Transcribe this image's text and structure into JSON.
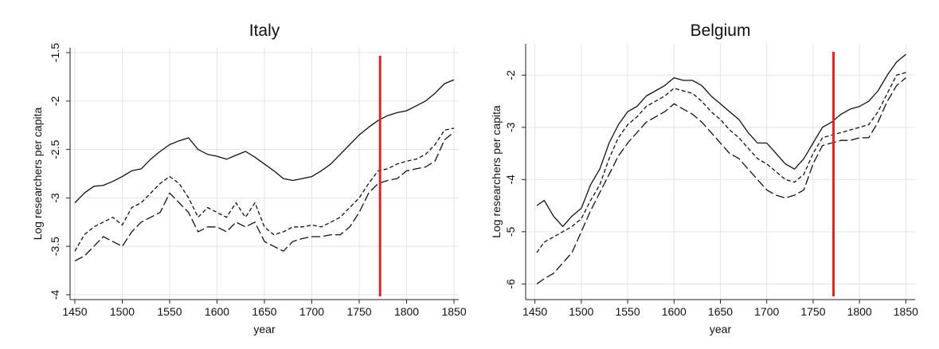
{
  "chart_data": [
    {
      "type": "line",
      "title": "Italy",
      "xlabel": "year",
      "ylabel": "Log researchers per capita",
      "xlim": [
        1445,
        1855
      ],
      "ylim": [
        -4.05,
        -1.45
      ],
      "xticks": [
        1450,
        1500,
        1550,
        1600,
        1650,
        1700,
        1750,
        1800,
        1850
      ],
      "yticks": [
        -4,
        -3.5,
        -3,
        -2.5,
        -2,
        -1.5
      ],
      "ytick_labels": [
        "-4",
        "-3.5",
        "-3",
        "-2.5",
        "-2",
        "-1.5"
      ],
      "grid": true,
      "vertical_line": {
        "x": 1772,
        "color": "#d62728"
      },
      "series": [
        {
          "style": "solid",
          "x": [
            1450,
            1460,
            1470,
            1480,
            1490,
            1500,
            1510,
            1520,
            1530,
            1540,
            1550,
            1560,
            1570,
            1580,
            1590,
            1600,
            1610,
            1620,
            1630,
            1640,
            1650,
            1660,
            1670,
            1680,
            1690,
            1700,
            1710,
            1720,
            1730,
            1740,
            1750,
            1760,
            1770,
            1780,
            1790,
            1800,
            1810,
            1820,
            1830,
            1840,
            1850
          ],
          "values": [
            -3.05,
            -2.95,
            -2.88,
            -2.87,
            -2.83,
            -2.78,
            -2.72,
            -2.7,
            -2.6,
            -2.52,
            -2.45,
            -2.41,
            -2.38,
            -2.5,
            -2.55,
            -2.57,
            -2.6,
            -2.56,
            -2.52,
            -2.58,
            -2.65,
            -2.72,
            -2.8,
            -2.82,
            -2.8,
            -2.78,
            -2.72,
            -2.65,
            -2.55,
            -2.45,
            -2.35,
            -2.27,
            -2.2,
            -2.15,
            -2.12,
            -2.1,
            -2.05,
            -2.0,
            -1.92,
            -1.82,
            -1.78
          ]
        },
        {
          "style": "dash",
          "x": [
            1450,
            1460,
            1470,
            1480,
            1490,
            1500,
            1510,
            1520,
            1530,
            1540,
            1550,
            1560,
            1570,
            1580,
            1590,
            1600,
            1610,
            1620,
            1630,
            1640,
            1650,
            1660,
            1670,
            1680,
            1690,
            1700,
            1710,
            1720,
            1730,
            1740,
            1750,
            1760,
            1770,
            1780,
            1790,
            1800,
            1810,
            1820,
            1830,
            1840,
            1850
          ],
          "values": [
            -3.55,
            -3.38,
            -3.3,
            -3.25,
            -3.2,
            -3.28,
            -3.1,
            -3.05,
            -2.95,
            -2.85,
            -2.78,
            -2.85,
            -3.0,
            -3.2,
            -3.1,
            -3.15,
            -3.2,
            -3.05,
            -3.2,
            -3.05,
            -3.3,
            -3.38,
            -3.35,
            -3.3,
            -3.3,
            -3.28,
            -3.3,
            -3.25,
            -3.2,
            -3.1,
            -3.0,
            -2.85,
            -2.72,
            -2.7,
            -2.65,
            -2.62,
            -2.6,
            -2.55,
            -2.45,
            -2.3,
            -2.28
          ]
        },
        {
          "style": "longdash",
          "x": [
            1450,
            1460,
            1470,
            1480,
            1490,
            1500,
            1510,
            1520,
            1530,
            1540,
            1550,
            1560,
            1570,
            1580,
            1590,
            1600,
            1610,
            1620,
            1630,
            1640,
            1650,
            1660,
            1670,
            1680,
            1690,
            1700,
            1710,
            1720,
            1730,
            1740,
            1750,
            1760,
            1770,
            1780,
            1790,
            1800,
            1810,
            1820,
            1830,
            1840,
            1850
          ],
          "values": [
            -3.65,
            -3.6,
            -3.5,
            -3.4,
            -3.45,
            -3.5,
            -3.35,
            -3.25,
            -3.2,
            -3.15,
            -2.95,
            -3.05,
            -3.15,
            -3.35,
            -3.3,
            -3.3,
            -3.35,
            -3.25,
            -3.3,
            -3.25,
            -3.45,
            -3.5,
            -3.55,
            -3.45,
            -3.42,
            -3.4,
            -3.4,
            -3.38,
            -3.38,
            -3.3,
            -3.15,
            -2.95,
            -2.85,
            -2.82,
            -2.8,
            -2.72,
            -2.7,
            -2.68,
            -2.62,
            -2.4,
            -2.32
          ]
        }
      ]
    },
    {
      "type": "line",
      "title": "Belgium",
      "xlabel": "year",
      "ylabel": "Log researchers per capita",
      "xlim": [
        1440,
        1860
      ],
      "ylim": [
        -6.3,
        -1.4
      ],
      "xticks": [
        1450,
        1500,
        1550,
        1600,
        1650,
        1700,
        1750,
        1800,
        1850
      ],
      "yticks": [
        -6,
        -5,
        -4,
        -3,
        -2
      ],
      "ytick_labels": [
        "-6",
        "-5",
        "-4",
        "-3",
        "-2"
      ],
      "grid": true,
      "vertical_line": {
        "x": 1772,
        "color": "#d62728"
      },
      "series": [
        {
          "style": "solid",
          "x": [
            1452,
            1460,
            1470,
            1480,
            1490,
            1500,
            1510,
            1520,
            1530,
            1540,
            1550,
            1560,
            1570,
            1580,
            1590,
            1600,
            1610,
            1620,
            1630,
            1640,
            1650,
            1660,
            1670,
            1680,
            1690,
            1700,
            1710,
            1720,
            1730,
            1740,
            1750,
            1760,
            1770,
            1780,
            1790,
            1800,
            1810,
            1820,
            1830,
            1840,
            1850
          ],
          "values": [
            -4.5,
            -4.4,
            -4.7,
            -4.9,
            -4.7,
            -4.55,
            -4.1,
            -3.8,
            -3.3,
            -2.95,
            -2.7,
            -2.6,
            -2.4,
            -2.3,
            -2.2,
            -2.05,
            -2.1,
            -2.1,
            -2.2,
            -2.4,
            -2.55,
            -2.7,
            -2.85,
            -3.1,
            -3.3,
            -3.3,
            -3.5,
            -3.7,
            -3.8,
            -3.6,
            -3.3,
            -3.0,
            -2.9,
            -2.75,
            -2.65,
            -2.6,
            -2.5,
            -2.3,
            -2.0,
            -1.75,
            -1.6
          ]
        },
        {
          "style": "dash",
          "x": [
            1452,
            1460,
            1470,
            1480,
            1490,
            1500,
            1510,
            1520,
            1530,
            1540,
            1550,
            1560,
            1570,
            1580,
            1590,
            1600,
            1610,
            1620,
            1630,
            1640,
            1650,
            1660,
            1670,
            1680,
            1690,
            1700,
            1710,
            1720,
            1730,
            1740,
            1750,
            1760,
            1770,
            1780,
            1790,
            1800,
            1810,
            1820,
            1830,
            1840,
            1850
          ],
          "values": [
            -5.4,
            -5.2,
            -5.1,
            -5.0,
            -4.9,
            -4.75,
            -4.4,
            -4.1,
            -3.6,
            -3.2,
            -2.95,
            -2.8,
            -2.6,
            -2.5,
            -2.4,
            -2.25,
            -2.3,
            -2.35,
            -2.5,
            -2.7,
            -2.85,
            -3.05,
            -3.2,
            -3.4,
            -3.6,
            -3.7,
            -3.85,
            -4.0,
            -4.05,
            -3.9,
            -3.5,
            -3.2,
            -3.15,
            -3.1,
            -3.05,
            -3.0,
            -2.95,
            -2.7,
            -2.35,
            -2.0,
            -1.95
          ]
        },
        {
          "style": "longdash",
          "x": [
            1452,
            1460,
            1470,
            1480,
            1490,
            1500,
            1510,
            1520,
            1530,
            1540,
            1550,
            1560,
            1570,
            1580,
            1590,
            1600,
            1610,
            1620,
            1630,
            1640,
            1650,
            1660,
            1670,
            1680,
            1690,
            1700,
            1710,
            1720,
            1730,
            1740,
            1750,
            1760,
            1770,
            1780,
            1790,
            1800,
            1810,
            1820,
            1830,
            1840,
            1850
          ],
          "values": [
            -6.0,
            -5.9,
            -5.8,
            -5.6,
            -5.4,
            -5.0,
            -4.6,
            -4.25,
            -3.9,
            -3.55,
            -3.3,
            -3.1,
            -2.9,
            -2.8,
            -2.7,
            -2.55,
            -2.65,
            -2.75,
            -2.9,
            -3.1,
            -3.3,
            -3.5,
            -3.6,
            -3.8,
            -4.0,
            -4.2,
            -4.3,
            -4.35,
            -4.3,
            -4.2,
            -3.7,
            -3.35,
            -3.3,
            -3.25,
            -3.25,
            -3.2,
            -3.2,
            -2.9,
            -2.5,
            -2.2,
            -2.05
          ]
        }
      ]
    }
  ]
}
